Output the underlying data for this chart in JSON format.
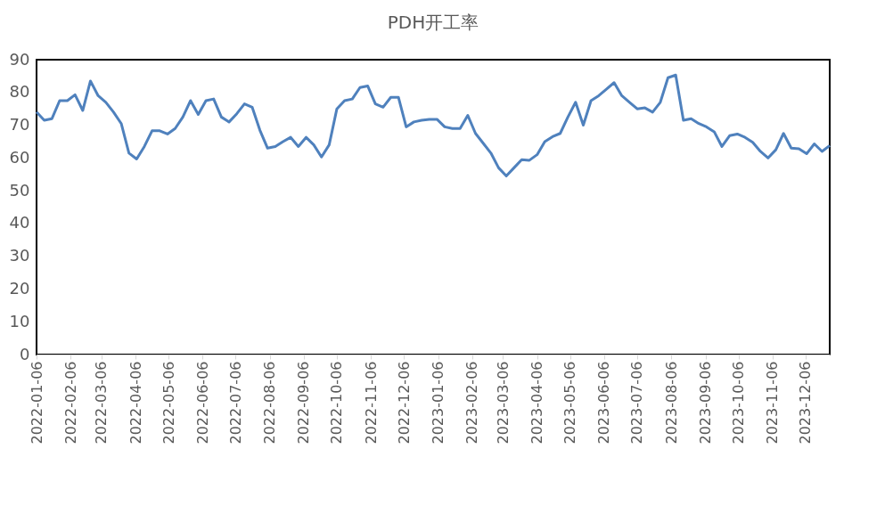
{
  "chart_data": {
    "type": "line",
    "title": "PDH开工率",
    "x": [
      "2022-01-06",
      "2022-01-13",
      "2022-01-20",
      "2022-01-27",
      "2022-02-03",
      "2022-02-10",
      "2022-02-17",
      "2022-02-24",
      "2022-03-03",
      "2022-03-10",
      "2022-03-17",
      "2022-03-24",
      "2022-03-31",
      "2022-04-07",
      "2022-04-14",
      "2022-04-21",
      "2022-04-28",
      "2022-05-05",
      "2022-05-12",
      "2022-05-19",
      "2022-05-26",
      "2022-06-02",
      "2022-06-09",
      "2022-06-16",
      "2022-06-23",
      "2022-06-30",
      "2022-07-07",
      "2022-07-14",
      "2022-07-21",
      "2022-07-28",
      "2022-08-04",
      "2022-08-11",
      "2022-08-18",
      "2022-08-25",
      "2022-09-01",
      "2022-09-08",
      "2022-09-15",
      "2022-09-22",
      "2022-09-29",
      "2022-10-06",
      "2022-10-13",
      "2022-10-20",
      "2022-10-27",
      "2022-11-03",
      "2022-11-10",
      "2022-11-17",
      "2022-11-24",
      "2022-12-01",
      "2022-12-08",
      "2022-12-15",
      "2022-12-22",
      "2022-12-29",
      "2023-01-05",
      "2023-01-12",
      "2023-01-19",
      "2023-01-26",
      "2023-02-02",
      "2023-02-09",
      "2023-02-16",
      "2023-02-23",
      "2023-03-02",
      "2023-03-09",
      "2023-03-16",
      "2023-03-23",
      "2023-03-30",
      "2023-04-06",
      "2023-04-13",
      "2023-04-20",
      "2023-04-27",
      "2023-05-04",
      "2023-05-11",
      "2023-05-18",
      "2023-05-25",
      "2023-06-01",
      "2023-06-08",
      "2023-06-15",
      "2023-06-22",
      "2023-06-29",
      "2023-07-06",
      "2023-07-13",
      "2023-07-20",
      "2023-07-27",
      "2023-08-03",
      "2023-08-10",
      "2023-08-17",
      "2023-08-24",
      "2023-08-31",
      "2023-09-07",
      "2023-09-14",
      "2023-09-21",
      "2023-09-28",
      "2023-10-05",
      "2023-10-12",
      "2023-10-19",
      "2023-10-26",
      "2023-11-02",
      "2023-11-09",
      "2023-11-16",
      "2023-11-23",
      "2023-11-30",
      "2023-12-07",
      "2023-12-14",
      "2023-12-21",
      "2023-12-28"
    ],
    "series": [
      {
        "color": "#4f81bd",
        "values": [
          74,
          71.5,
          72,
          77.5,
          77.5,
          79.3,
          74.5,
          83.5,
          79,
          77,
          74,
          70.5,
          61.5,
          59.7,
          63.5,
          68.3,
          68.3,
          67.3,
          69,
          72.5,
          77.5,
          73.3,
          77.5,
          78,
          72.5,
          71,
          73.5,
          76.5,
          75.5,
          68.5,
          63,
          63.5,
          65,
          66.3,
          63.5,
          66.3,
          64,
          60.3,
          64,
          75,
          77.5,
          78,
          81.5,
          82,
          76.5,
          75.5,
          78.5,
          78.5,
          69.5,
          71,
          71.5,
          71.8,
          71.8,
          69.5,
          69,
          69,
          73,
          67.5,
          64.5,
          61.5,
          57,
          54.5,
          57,
          59.5,
          59.3,
          61,
          65,
          66.5,
          67.5,
          72.5,
          77,
          70,
          77.5,
          79,
          81,
          83,
          79,
          77,
          75,
          75.3,
          74,
          77,
          84.5,
          85.3,
          71.5,
          72,
          70.5,
          69.5,
          68,
          63.5,
          66.8,
          67.3,
          66.3,
          64.8,
          62,
          60,
          62.5,
          67.5,
          63,
          62.8,
          61.3,
          64.3,
          62,
          63.8
        ]
      }
    ],
    "xlim": [
      "2022-01-06",
      "2023-12-28"
    ],
    "xticks": [
      "2022-01-06",
      "2022-02-06",
      "2022-03-06",
      "2022-04-06",
      "2022-05-06",
      "2022-06-06",
      "2022-07-06",
      "2022-08-06",
      "2022-09-06",
      "2022-10-06",
      "2022-11-06",
      "2022-12-06",
      "2023-01-06",
      "2023-02-06",
      "2023-03-06",
      "2023-04-06",
      "2023-05-06",
      "2023-06-06",
      "2023-07-06",
      "2023-08-06",
      "2023-09-06",
      "2023-10-06",
      "2023-11-06",
      "2023-12-06"
    ],
    "ylim": [
      0,
      90
    ],
    "yticks": [
      0,
      10,
      20,
      30,
      40,
      50,
      60,
      70,
      80,
      90
    ],
    "grid": false,
    "legend": false,
    "marker": "none",
    "line_style": "solid"
  }
}
